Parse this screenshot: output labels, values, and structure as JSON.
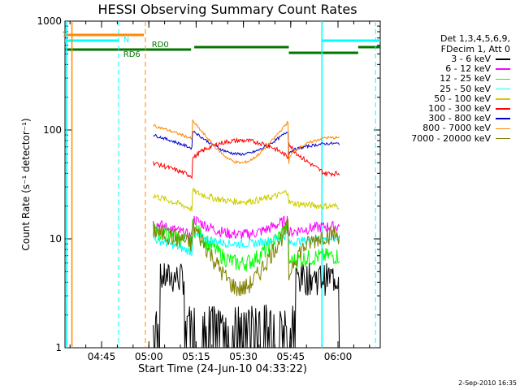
{
  "chart_data": {
    "type": "line",
    "title": "HESSI Observing Summary Count Rates",
    "xlabel": "Start Time (24-Jun-10 04:33:22)",
    "ylabel": "Count Rate (s⁻¹ detector⁻¹)",
    "yscale": "log",
    "ylim": [
      1,
      1000
    ],
    "xlim_minutes_from_start": [
      0,
      100
    ],
    "x_ticks": [
      "04:45",
      "05:00",
      "05:15",
      "05:30",
      "05:45",
      "06:00"
    ],
    "y_ticks": [
      "1",
      "10",
      "100",
      "1000"
    ],
    "legend": {
      "header": [
        "Det 1,3,4,5,6,9,",
        "FDecim 1, Att 0"
      ],
      "placement": "right"
    },
    "markers": {
      "S": "S",
      "N": "N",
      "RD0": "RD0",
      "RD6": "RD6"
    },
    "series": [
      {
        "name": "3 - 6 keV",
        "color": "#000000",
        "values_by_segment": {
          "start": 0,
          "dip": 1.2,
          "end": 0
        }
      },
      {
        "name": "6 - 12 keV",
        "color": "#ff00ff",
        "values_by_segment": {
          "start": 14,
          "dip": 11,
          "end": 13
        }
      },
      {
        "name": "12 - 25 keV",
        "color": "#00ff00",
        "values_by_segment": {
          "start": 12,
          "dip": 6,
          "end": 7
        }
      },
      {
        "name": "25 - 50 keV",
        "color": "#00ffff",
        "values_by_segment": {
          "start": 10,
          "dip": 9,
          "end": 10
        }
      },
      {
        "name": "50 - 100 keV",
        "color": "#cccc00",
        "values_by_segment": {
          "start": 25,
          "dip": 22,
          "end": 20
        }
      },
      {
        "name": "100 - 300 keV",
        "color": "#ff0000",
        "values_by_segment": {
          "start": 50,
          "dip": 80,
          "end": 40
        }
      },
      {
        "name": "300 - 800 keV",
        "color": "#0000cc",
        "values_by_segment": {
          "start": 90,
          "dip": 60,
          "end": 75
        }
      },
      {
        "name": "800 - 7000 keV",
        "color": "#ff8800",
        "values_by_segment": {
          "start": 110,
          "dip": 50,
          "end": 85
        }
      },
      {
        "name": "7000 - 20000 keV",
        "color": "#808000",
        "values_by_segment": {
          "start": 12,
          "dip": 3.5,
          "end": 11
        }
      }
    ]
  },
  "timestamp": "2-Sep-2010 16:35"
}
